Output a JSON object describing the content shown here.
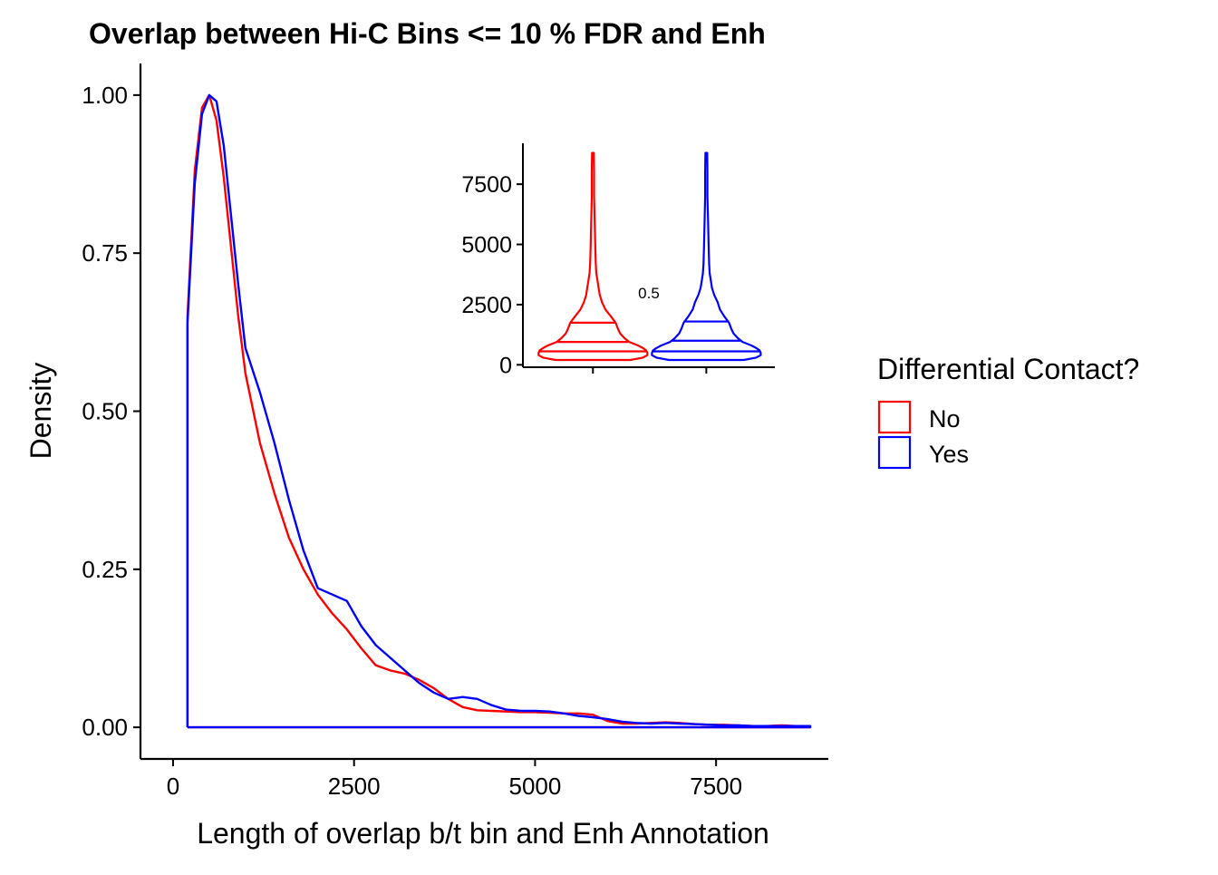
{
  "chart_data": [
    {
      "type": "line",
      "subtype": "density",
      "title": "Overlap between Hi-C Bins <= 10 % FDR and Enh",
      "xlabel": "Length of overlap b/t bin and Enh Annotation",
      "ylabel": "Density",
      "xlim": [
        -450,
        9050
      ],
      "ylim": [
        -0.05,
        1.05
      ],
      "xticks": [
        0,
        2500,
        5000,
        7500
      ],
      "xtick_labels": [
        "0",
        "2500",
        "5000",
        "7500"
      ],
      "yticks": [
        0,
        0.25,
        0.5,
        0.75,
        1.0
      ],
      "ytick_labels": [
        "0.00",
        "0.25",
        "0.50",
        "0.75",
        "1.00"
      ],
      "grid": false,
      "legend": {
        "title": "Differential Contact?",
        "placement": "right",
        "entries": [
          "No",
          "Yes"
        ]
      },
      "series": [
        {
          "name": "No",
          "color": "#FF0000",
          "x": [
            200,
            200,
            300,
            400,
            500,
            600,
            700,
            800,
            900,
            1000,
            1200,
            1400,
            1600,
            1800,
            2000,
            2200,
            2400,
            2600,
            2800,
            3000,
            3200,
            3400,
            3600,
            3800,
            4000,
            4200,
            4400,
            4600,
            4800,
            5000,
            5200,
            5400,
            5600,
            5800,
            6000,
            6200,
            6400,
            6600,
            6800,
            7000,
            7200,
            7400,
            7600,
            7800,
            8000,
            8200,
            8400,
            8600,
            8800,
            8800,
            200
          ],
          "values": [
            0,
            0.65,
            0.88,
            0.98,
            1.0,
            0.96,
            0.87,
            0.76,
            0.65,
            0.56,
            0.45,
            0.37,
            0.3,
            0.25,
            0.21,
            0.18,
            0.155,
            0.125,
            0.098,
            0.09,
            0.085,
            0.075,
            0.062,
            0.045,
            0.032,
            0.027,
            0.026,
            0.025,
            0.024,
            0.024,
            0.023,
            0.022,
            0.022,
            0.02,
            0.01,
            0.006,
            0.006,
            0.007,
            0.008,
            0.007,
            0.005,
            0.004,
            0.004,
            0.003,
            0.002,
            0.002,
            0.003,
            0.002,
            0.002,
            0,
            0
          ]
        },
        {
          "name": "Yes",
          "color": "#0000FF",
          "x": [
            200,
            200,
            300,
            400,
            500,
            600,
            700,
            800,
            900,
            1000,
            1200,
            1400,
            1600,
            1800,
            2000,
            2200,
            2400,
            2600,
            2800,
            3000,
            3200,
            3400,
            3600,
            3800,
            4000,
            4200,
            4400,
            4600,
            4800,
            5000,
            5200,
            5400,
            5600,
            5800,
            6000,
            6200,
            6400,
            6600,
            6800,
            7000,
            7200,
            7400,
            7600,
            7800,
            8000,
            8200,
            8400,
            8600,
            8800,
            8800,
            200
          ],
          "values": [
            0,
            0.64,
            0.86,
            0.97,
            1.0,
            0.99,
            0.92,
            0.81,
            0.7,
            0.6,
            0.53,
            0.45,
            0.36,
            0.28,
            0.22,
            0.21,
            0.2,
            0.16,
            0.13,
            0.11,
            0.09,
            0.07,
            0.055,
            0.045,
            0.048,
            0.045,
            0.035,
            0.028,
            0.026,
            0.026,
            0.025,
            0.022,
            0.018,
            0.016,
            0.013,
            0.009,
            0.007,
            0.006,
            0.007,
            0.006,
            0.005,
            0.004,
            0.003,
            0.003,
            0.002,
            0.002,
            0.002,
            0.002,
            0.002,
            0,
            0
          ]
        }
      ]
    },
    {
      "type": "violin",
      "ylim": [
        -100,
        9200
      ],
      "yticks": [
        0,
        2500,
        5000,
        7500
      ],
      "ytick_labels": [
        "0",
        "2500",
        "5000",
        "7500"
      ],
      "annotation": "0.5",
      "grid": false,
      "series": [
        {
          "name": "No",
          "color": "#FF0000",
          "quantiles": [
            560,
            950,
            1750
          ],
          "quantile_halfwidths": [
            0.47,
            0.31,
            0.2
          ],
          "profile_y": [
            200,
            300,
            400,
            500,
            600,
            700,
            800,
            950,
            1100,
            1300,
            1500,
            1750,
            2000,
            2300,
            2600,
            2900,
            3200,
            3500,
            3800,
            4200,
            5000,
            6000,
            7000,
            8000,
            8800
          ],
          "profile_w": [
            0.33,
            0.44,
            0.48,
            0.48,
            0.47,
            0.44,
            0.4,
            0.32,
            0.28,
            0.24,
            0.22,
            0.2,
            0.16,
            0.11,
            0.08,
            0.06,
            0.05,
            0.04,
            0.03,
            0.025,
            0.02,
            0.015,
            0.01,
            0.01,
            0.008
          ]
        },
        {
          "name": "Yes",
          "color": "#0000FF",
          "quantiles": [
            560,
            1000,
            1800
          ],
          "quantile_halfwidths": [
            0.47,
            0.3,
            0.2
          ],
          "profile_y": [
            200,
            300,
            400,
            500,
            600,
            700,
            800,
            950,
            1100,
            1300,
            1500,
            1750,
            2000,
            2300,
            2600,
            2900,
            3200,
            3500,
            3800,
            4200,
            5000,
            6000,
            7000,
            8000,
            8800
          ],
          "profile_w": [
            0.33,
            0.44,
            0.48,
            0.48,
            0.47,
            0.44,
            0.4,
            0.32,
            0.28,
            0.24,
            0.22,
            0.2,
            0.16,
            0.12,
            0.1,
            0.07,
            0.05,
            0.04,
            0.03,
            0.025,
            0.02,
            0.015,
            0.01,
            0.01,
            0.008
          ]
        }
      ]
    }
  ]
}
